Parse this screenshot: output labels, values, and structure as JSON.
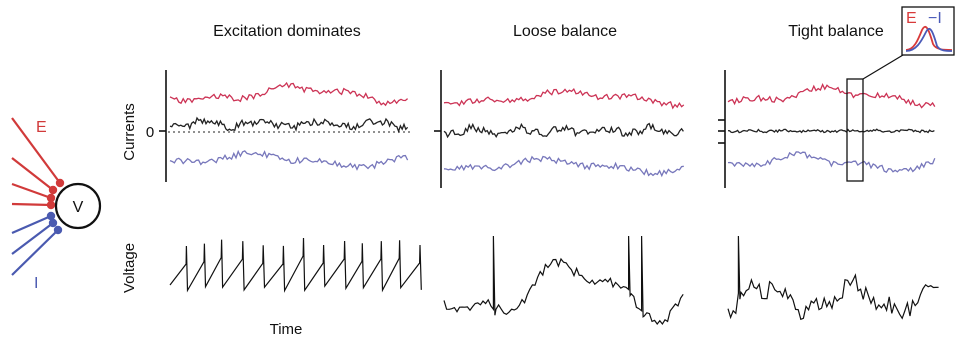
{
  "panels": [
    {
      "id": "excitation",
      "title": "Excitation dominates"
    },
    {
      "id": "loose",
      "title": "Loose balance"
    },
    {
      "id": "tight",
      "title": "Tight balance"
    }
  ],
  "axes": {
    "currents_label": "Currents",
    "voltage_label": "Voltage",
    "time_label": "Time",
    "zero_tick": "0"
  },
  "neuron": {
    "cell_label": "V",
    "excitatory_label": "E",
    "inhibitory_label": "I"
  },
  "inset": {
    "e_label": "E",
    "i_label": "−I"
  },
  "colors": {
    "excitatory": "#cc3355",
    "inhibitory": "#7777bb",
    "net": "#222222",
    "synapse_e": "#d13a3a",
    "synapse_i": "#4a5ab0",
    "inset_e": "#d83a3a",
    "inset_i": "#4a5ab8"
  }
}
